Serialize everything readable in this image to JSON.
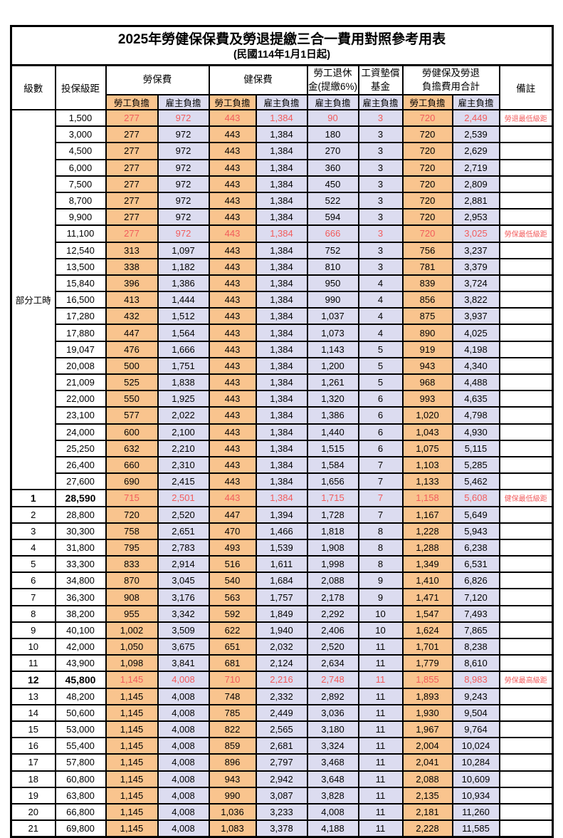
{
  "title": "2025年勞健保保費及勞退提繳三合一費用對照參考用表",
  "subtitle": "(民國114年1月1日起)",
  "header": {
    "level": "級數",
    "bracket": "投保級距",
    "labor": "勞保費",
    "health": "健保費",
    "pension_l1": "勞工退休",
    "pension_l2": "金(提繳6%)",
    "fund_l1": "工資墊償",
    "fund_l2": "基金",
    "total_l1": "勞健保及勞退",
    "total_l2": "負擔費用合計",
    "note": "備註",
    "employee": "勞工負擔",
    "employer": "雇主負擔"
  },
  "part_time_label": "部分工時",
  "part_time_span": 23,
  "colors": {
    "employee_bg": "#f9c48e",
    "employer_bg": "#dcdcf0",
    "highlight_red": "#f25c5c"
  },
  "rows": [
    {
      "level": "",
      "bracket": "1,500",
      "labor_emp": "277",
      "labor_er": "972",
      "health_emp": "443",
      "health_er": "1,384",
      "pension_er": "90",
      "fund_er": "3",
      "sum_emp": "720",
      "sum_er": "2,449",
      "note": "勞退最低級距",
      "red": true,
      "bold": false
    },
    {
      "level": "",
      "bracket": "3,000",
      "labor_emp": "277",
      "labor_er": "972",
      "health_emp": "443",
      "health_er": "1,384",
      "pension_er": "180",
      "fund_er": "3",
      "sum_emp": "720",
      "sum_er": "2,539",
      "note": "",
      "red": false,
      "bold": false
    },
    {
      "level": "",
      "bracket": "4,500",
      "labor_emp": "277",
      "labor_er": "972",
      "health_emp": "443",
      "health_er": "1,384",
      "pension_er": "270",
      "fund_er": "3",
      "sum_emp": "720",
      "sum_er": "2,629",
      "note": "",
      "red": false,
      "bold": false
    },
    {
      "level": "",
      "bracket": "6,000",
      "labor_emp": "277",
      "labor_er": "972",
      "health_emp": "443",
      "health_er": "1,384",
      "pension_er": "360",
      "fund_er": "3",
      "sum_emp": "720",
      "sum_er": "2,719",
      "note": "",
      "red": false,
      "bold": false
    },
    {
      "level": "",
      "bracket": "7,500",
      "labor_emp": "277",
      "labor_er": "972",
      "health_emp": "443",
      "health_er": "1,384",
      "pension_er": "450",
      "fund_er": "3",
      "sum_emp": "720",
      "sum_er": "2,809",
      "note": "",
      "red": false,
      "bold": false
    },
    {
      "level": "",
      "bracket": "8,700",
      "labor_emp": "277",
      "labor_er": "972",
      "health_emp": "443",
      "health_er": "1,384",
      "pension_er": "522",
      "fund_er": "3",
      "sum_emp": "720",
      "sum_er": "2,881",
      "note": "",
      "red": false,
      "bold": false
    },
    {
      "level": "",
      "bracket": "9,900",
      "labor_emp": "277",
      "labor_er": "972",
      "health_emp": "443",
      "health_er": "1,384",
      "pension_er": "594",
      "fund_er": "3",
      "sum_emp": "720",
      "sum_er": "2,953",
      "note": "",
      "red": false,
      "bold": false
    },
    {
      "level": "",
      "bracket": "11,100",
      "labor_emp": "277",
      "labor_er": "972",
      "health_emp": "443",
      "health_er": "1,384",
      "pension_er": "666",
      "fund_er": "3",
      "sum_emp": "720",
      "sum_er": "3,025",
      "note": "勞保最低級距",
      "red": true,
      "bold": false
    },
    {
      "level": "",
      "bracket": "12,540",
      "labor_emp": "313",
      "labor_er": "1,097",
      "health_emp": "443",
      "health_er": "1,384",
      "pension_er": "752",
      "fund_er": "3",
      "sum_emp": "756",
      "sum_er": "3,237",
      "note": "",
      "red": false,
      "bold": false
    },
    {
      "level": "",
      "bracket": "13,500",
      "labor_emp": "338",
      "labor_er": "1,182",
      "health_emp": "443",
      "health_er": "1,384",
      "pension_er": "810",
      "fund_er": "3",
      "sum_emp": "781",
      "sum_er": "3,379",
      "note": "",
      "red": false,
      "bold": false
    },
    {
      "level": "",
      "bracket": "15,840",
      "labor_emp": "396",
      "labor_er": "1,386",
      "health_emp": "443",
      "health_er": "1,384",
      "pension_er": "950",
      "fund_er": "4",
      "sum_emp": "839",
      "sum_er": "3,724",
      "note": "",
      "red": false,
      "bold": false
    },
    {
      "level": "",
      "bracket": "16,500",
      "labor_emp": "413",
      "labor_er": "1,444",
      "health_emp": "443",
      "health_er": "1,384",
      "pension_er": "990",
      "fund_er": "4",
      "sum_emp": "856",
      "sum_er": "3,822",
      "note": "",
      "red": false,
      "bold": false
    },
    {
      "level": "",
      "bracket": "17,280",
      "labor_emp": "432",
      "labor_er": "1,512",
      "health_emp": "443",
      "health_er": "1,384",
      "pension_er": "1,037",
      "fund_er": "4",
      "sum_emp": "875",
      "sum_er": "3,937",
      "note": "",
      "red": false,
      "bold": false
    },
    {
      "level": "",
      "bracket": "17,880",
      "labor_emp": "447",
      "labor_er": "1,564",
      "health_emp": "443",
      "health_er": "1,384",
      "pension_er": "1,073",
      "fund_er": "4",
      "sum_emp": "890",
      "sum_er": "4,025",
      "note": "",
      "red": false,
      "bold": false
    },
    {
      "level": "",
      "bracket": "19,047",
      "labor_emp": "476",
      "labor_er": "1,666",
      "health_emp": "443",
      "health_er": "1,384",
      "pension_er": "1,143",
      "fund_er": "5",
      "sum_emp": "919",
      "sum_er": "4,198",
      "note": "",
      "red": false,
      "bold": false
    },
    {
      "level": "",
      "bracket": "20,008",
      "labor_emp": "500",
      "labor_er": "1,751",
      "health_emp": "443",
      "health_er": "1,384",
      "pension_er": "1,200",
      "fund_er": "5",
      "sum_emp": "943",
      "sum_er": "4,340",
      "note": "",
      "red": false,
      "bold": false
    },
    {
      "level": "",
      "bracket": "21,009",
      "labor_emp": "525",
      "labor_er": "1,838",
      "health_emp": "443",
      "health_er": "1,384",
      "pension_er": "1,261",
      "fund_er": "5",
      "sum_emp": "968",
      "sum_er": "4,488",
      "note": "",
      "red": false,
      "bold": false
    },
    {
      "level": "",
      "bracket": "22,000",
      "labor_emp": "550",
      "labor_er": "1,925",
      "health_emp": "443",
      "health_er": "1,384",
      "pension_er": "1,320",
      "fund_er": "6",
      "sum_emp": "993",
      "sum_er": "4,635",
      "note": "",
      "red": false,
      "bold": false
    },
    {
      "level": "",
      "bracket": "23,100",
      "labor_emp": "577",
      "labor_er": "2,022",
      "health_emp": "443",
      "health_er": "1,384",
      "pension_er": "1,386",
      "fund_er": "6",
      "sum_emp": "1,020",
      "sum_er": "4,798",
      "note": "",
      "red": false,
      "bold": false
    },
    {
      "level": "",
      "bracket": "24,000",
      "labor_emp": "600",
      "labor_er": "2,100",
      "health_emp": "443",
      "health_er": "1,384",
      "pension_er": "1,440",
      "fund_er": "6",
      "sum_emp": "1,043",
      "sum_er": "4,930",
      "note": "",
      "red": false,
      "bold": false
    },
    {
      "level": "",
      "bracket": "25,250",
      "labor_emp": "632",
      "labor_er": "2,210",
      "health_emp": "443",
      "health_er": "1,384",
      "pension_er": "1,515",
      "fund_er": "6",
      "sum_emp": "1,075",
      "sum_er": "5,115",
      "note": "",
      "red": false,
      "bold": false
    },
    {
      "level": "",
      "bracket": "26,400",
      "labor_emp": "660",
      "labor_er": "2,310",
      "health_emp": "443",
      "health_er": "1,384",
      "pension_er": "1,584",
      "fund_er": "7",
      "sum_emp": "1,103",
      "sum_er": "5,285",
      "note": "",
      "red": false,
      "bold": false
    },
    {
      "level": "",
      "bracket": "27,600",
      "labor_emp": "690",
      "labor_er": "2,415",
      "health_emp": "443",
      "health_er": "1,384",
      "pension_er": "1,656",
      "fund_er": "7",
      "sum_emp": "1,133",
      "sum_er": "5,462",
      "note": "",
      "red": false,
      "bold": false
    },
    {
      "level": "1",
      "bracket": "28,590",
      "labor_emp": "715",
      "labor_er": "2,501",
      "health_emp": "443",
      "health_er": "1,384",
      "pension_er": "1,715",
      "fund_er": "7",
      "sum_emp": "1,158",
      "sum_er": "5,608",
      "note": "健保最低級距",
      "red": true,
      "bold": true
    },
    {
      "level": "2",
      "bracket": "28,800",
      "labor_emp": "720",
      "labor_er": "2,520",
      "health_emp": "447",
      "health_er": "1,394",
      "pension_er": "1,728",
      "fund_er": "7",
      "sum_emp": "1,167",
      "sum_er": "5,649",
      "note": "",
      "red": false,
      "bold": false
    },
    {
      "level": "3",
      "bracket": "30,300",
      "labor_emp": "758",
      "labor_er": "2,651",
      "health_emp": "470",
      "health_er": "1,466",
      "pension_er": "1,818",
      "fund_er": "8",
      "sum_emp": "1,228",
      "sum_er": "5,943",
      "note": "",
      "red": false,
      "bold": false
    },
    {
      "level": "4",
      "bracket": "31,800",
      "labor_emp": "795",
      "labor_er": "2,783",
      "health_emp": "493",
      "health_er": "1,539",
      "pension_er": "1,908",
      "fund_er": "8",
      "sum_emp": "1,288",
      "sum_er": "6,238",
      "note": "",
      "red": false,
      "bold": false
    },
    {
      "level": "5",
      "bracket": "33,300",
      "labor_emp": "833",
      "labor_er": "2,914",
      "health_emp": "516",
      "health_er": "1,611",
      "pension_er": "1,998",
      "fund_er": "8",
      "sum_emp": "1,349",
      "sum_er": "6,531",
      "note": "",
      "red": false,
      "bold": false
    },
    {
      "level": "6",
      "bracket": "34,800",
      "labor_emp": "870",
      "labor_er": "3,045",
      "health_emp": "540",
      "health_er": "1,684",
      "pension_er": "2,088",
      "fund_er": "9",
      "sum_emp": "1,410",
      "sum_er": "6,826",
      "note": "",
      "red": false,
      "bold": false
    },
    {
      "level": "7",
      "bracket": "36,300",
      "labor_emp": "908",
      "labor_er": "3,176",
      "health_emp": "563",
      "health_er": "1,757",
      "pension_er": "2,178",
      "fund_er": "9",
      "sum_emp": "1,471",
      "sum_er": "7,120",
      "note": "",
      "red": false,
      "bold": false
    },
    {
      "level": "8",
      "bracket": "38,200",
      "labor_emp": "955",
      "labor_er": "3,342",
      "health_emp": "592",
      "health_er": "1,849",
      "pension_er": "2,292",
      "fund_er": "10",
      "sum_emp": "1,547",
      "sum_er": "7,493",
      "note": "",
      "red": false,
      "bold": false
    },
    {
      "level": "9",
      "bracket": "40,100",
      "labor_emp": "1,002",
      "labor_er": "3,509",
      "health_emp": "622",
      "health_er": "1,940",
      "pension_er": "2,406",
      "fund_er": "10",
      "sum_emp": "1,624",
      "sum_er": "7,865",
      "note": "",
      "red": false,
      "bold": false
    },
    {
      "level": "10",
      "bracket": "42,000",
      "labor_emp": "1,050",
      "labor_er": "3,675",
      "health_emp": "651",
      "health_er": "2,032",
      "pension_er": "2,520",
      "fund_er": "11",
      "sum_emp": "1,701",
      "sum_er": "8,238",
      "note": "",
      "red": false,
      "bold": false
    },
    {
      "level": "11",
      "bracket": "43,900",
      "labor_emp": "1,098",
      "labor_er": "3,841",
      "health_emp": "681",
      "health_er": "2,124",
      "pension_er": "2,634",
      "fund_er": "11",
      "sum_emp": "1,779",
      "sum_er": "8,610",
      "note": "",
      "red": false,
      "bold": false
    },
    {
      "level": "12",
      "bracket": "45,800",
      "labor_emp": "1,145",
      "labor_er": "4,008",
      "health_emp": "710",
      "health_er": "2,216",
      "pension_er": "2,748",
      "fund_er": "11",
      "sum_emp": "1,855",
      "sum_er": "8,983",
      "note": "勞保最高級距",
      "red": true,
      "bold": true
    },
    {
      "level": "13",
      "bracket": "48,200",
      "labor_emp": "1,145",
      "labor_er": "4,008",
      "health_emp": "748",
      "health_er": "2,332",
      "pension_er": "2,892",
      "fund_er": "11",
      "sum_emp": "1,893",
      "sum_er": "9,243",
      "note": "",
      "red": false,
      "bold": false
    },
    {
      "level": "14",
      "bracket": "50,600",
      "labor_emp": "1,145",
      "labor_er": "4,008",
      "health_emp": "785",
      "health_er": "2,449",
      "pension_er": "3,036",
      "fund_er": "11",
      "sum_emp": "1,930",
      "sum_er": "9,504",
      "note": "",
      "red": false,
      "bold": false
    },
    {
      "level": "15",
      "bracket": "53,000",
      "labor_emp": "1,145",
      "labor_er": "4,008",
      "health_emp": "822",
      "health_er": "2,565",
      "pension_er": "3,180",
      "fund_er": "11",
      "sum_emp": "1,967",
      "sum_er": "9,764",
      "note": "",
      "red": false,
      "bold": false
    },
    {
      "level": "16",
      "bracket": "55,400",
      "labor_emp": "1,145",
      "labor_er": "4,008",
      "health_emp": "859",
      "health_er": "2,681",
      "pension_er": "3,324",
      "fund_er": "11",
      "sum_emp": "2,004",
      "sum_er": "10,024",
      "note": "",
      "red": false,
      "bold": false
    },
    {
      "level": "17",
      "bracket": "57,800",
      "labor_emp": "1,145",
      "labor_er": "4,008",
      "health_emp": "896",
      "health_er": "2,797",
      "pension_er": "3,468",
      "fund_er": "11",
      "sum_emp": "2,041",
      "sum_er": "10,284",
      "note": "",
      "red": false,
      "bold": false
    },
    {
      "level": "18",
      "bracket": "60,800",
      "labor_emp": "1,145",
      "labor_er": "4,008",
      "health_emp": "943",
      "health_er": "2,942",
      "pension_er": "3,648",
      "fund_er": "11",
      "sum_emp": "2,088",
      "sum_er": "10,609",
      "note": "",
      "red": false,
      "bold": false
    },
    {
      "level": "19",
      "bracket": "63,800",
      "labor_emp": "1,145",
      "labor_er": "4,008",
      "health_emp": "990",
      "health_er": "3,087",
      "pension_er": "3,828",
      "fund_er": "11",
      "sum_emp": "2,135",
      "sum_er": "10,934",
      "note": "",
      "red": false,
      "bold": false
    },
    {
      "level": "20",
      "bracket": "66,800",
      "labor_emp": "1,145",
      "labor_er": "4,008",
      "health_emp": "1,036",
      "health_er": "3,233",
      "pension_er": "4,008",
      "fund_er": "11",
      "sum_emp": "2,181",
      "sum_er": "11,260",
      "note": "",
      "red": false,
      "bold": false
    },
    {
      "level": "21",
      "bracket": "69,800",
      "labor_emp": "1,145",
      "labor_er": "4,008",
      "health_emp": "1,083",
      "health_er": "3,378",
      "pension_er": "4,188",
      "fund_er": "11",
      "sum_emp": "2,228",
      "sum_er": "11,585",
      "note": "",
      "red": false,
      "bold": false
    }
  ]
}
